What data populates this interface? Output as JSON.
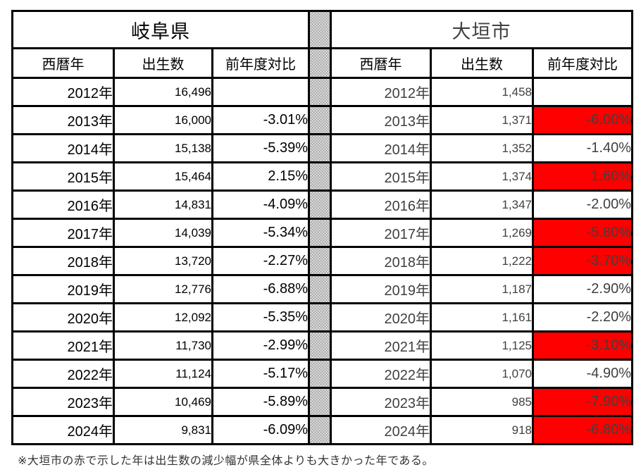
{
  "note": "※大垣市の赤で示した年は出生数の減少幅が県全体よりも大きかった年である。",
  "table": {
    "left": {
      "title": "岐阜県",
      "headers": {
        "year": "西暦年",
        "births": "出生数",
        "pct": "前年度対比"
      }
    },
    "right": {
      "title": "大垣市",
      "headers": {
        "year": "西暦年",
        "births": "出生数",
        "pct": "前年度対比"
      }
    },
    "colors": {
      "highlight_red": "#ff0000",
      "right_text": "#404040",
      "left_text": "#000000",
      "border": "#000000"
    },
    "rows": [
      {
        "year": "2012年",
        "gifu_births": "16,496",
        "gifu_pct": "",
        "ogaki_births": "1,458",
        "ogaki_pct": "",
        "ogaki_red": false
      },
      {
        "year": "2013年",
        "gifu_births": "16,000",
        "gifu_pct": "-3.01%",
        "ogaki_births": "1,371",
        "ogaki_pct": "-6.00%",
        "ogaki_red": true
      },
      {
        "year": "2014年",
        "gifu_births": "15,138",
        "gifu_pct": "-5.39%",
        "ogaki_births": "1,352",
        "ogaki_pct": "-1.40%",
        "ogaki_red": false
      },
      {
        "year": "2015年",
        "gifu_births": "15,464",
        "gifu_pct": "2.15%",
        "ogaki_births": "1,374",
        "ogaki_pct": "1.60%",
        "ogaki_red": true
      },
      {
        "year": "2016年",
        "gifu_births": "14,831",
        "gifu_pct": "-4.09%",
        "ogaki_births": "1,347",
        "ogaki_pct": "-2.00%",
        "ogaki_red": false
      },
      {
        "year": "2017年",
        "gifu_births": "14,039",
        "gifu_pct": "-5.34%",
        "ogaki_births": "1,269",
        "ogaki_pct": "-5.80%",
        "ogaki_red": true
      },
      {
        "year": "2018年",
        "gifu_births": "13,720",
        "gifu_pct": "-2.27%",
        "ogaki_births": "1,222",
        "ogaki_pct": "-3.70%",
        "ogaki_red": true
      },
      {
        "year": "2019年",
        "gifu_births": "12,776",
        "gifu_pct": "-6.88%",
        "ogaki_births": "1,187",
        "ogaki_pct": "-2.90%",
        "ogaki_red": false
      },
      {
        "year": "2020年",
        "gifu_births": "12,092",
        "gifu_pct": "-5.35%",
        "ogaki_births": "1,161",
        "ogaki_pct": "-2.20%",
        "ogaki_red": false
      },
      {
        "year": "2021年",
        "gifu_births": "11,730",
        "gifu_pct": "-2.99%",
        "ogaki_births": "1,125",
        "ogaki_pct": "-3.10%",
        "ogaki_red": true
      },
      {
        "year": "2022年",
        "gifu_births": "11,124",
        "gifu_pct": "-5.17%",
        "ogaki_births": "1,070",
        "ogaki_pct": "-4.90%",
        "ogaki_red": false
      },
      {
        "year": "2023年",
        "gifu_births": "10,469",
        "gifu_pct": "-5.89%",
        "ogaki_births": "985",
        "ogaki_pct": "-7.90%",
        "ogaki_red": true
      },
      {
        "year": "2024年",
        "gifu_births": "9,831",
        "gifu_pct": "-6.09%",
        "ogaki_births": "918",
        "ogaki_pct": "-6.80%",
        "ogaki_red": true
      }
    ]
  },
  "chart_data": {
    "type": "table",
    "title": "",
    "categories": [
      "2012年",
      "2013年",
      "2014年",
      "2015年",
      "2016年",
      "2017年",
      "2018年",
      "2019年",
      "2020年",
      "2021年",
      "2022年",
      "2023年",
      "2024年"
    ],
    "series": [
      {
        "name": "岐阜県 出生数",
        "values": [
          16496,
          16000,
          15138,
          15464,
          14831,
          14039,
          13720,
          12776,
          12092,
          11730,
          11124,
          10469,
          9831
        ]
      },
      {
        "name": "岐阜県 前年度対比(%)",
        "values": [
          null,
          -3.01,
          -5.39,
          2.15,
          -4.09,
          -5.34,
          -2.27,
          -6.88,
          -5.35,
          -2.99,
          -5.17,
          -5.89,
          -6.09
        ]
      },
      {
        "name": "大垣市 出生数",
        "values": [
          1458,
          1371,
          1352,
          1374,
          1347,
          1269,
          1222,
          1187,
          1161,
          1125,
          1070,
          985,
          918
        ]
      },
      {
        "name": "大垣市 前年度対比(%)",
        "values": [
          null,
          -6.0,
          -1.4,
          1.6,
          -2.0,
          -5.8,
          -3.7,
          -2.9,
          -2.2,
          -3.1,
          -4.9,
          -7.9,
          -6.8
        ]
      }
    ],
    "highlighted_red_ogaki_years": [
      "2013年",
      "2015年",
      "2017年",
      "2018年",
      "2021年",
      "2023年",
      "2024年"
    ],
    "note": "※大垣市の赤で示した年は出生数の減少幅が県全体よりも大きかった年である。"
  }
}
